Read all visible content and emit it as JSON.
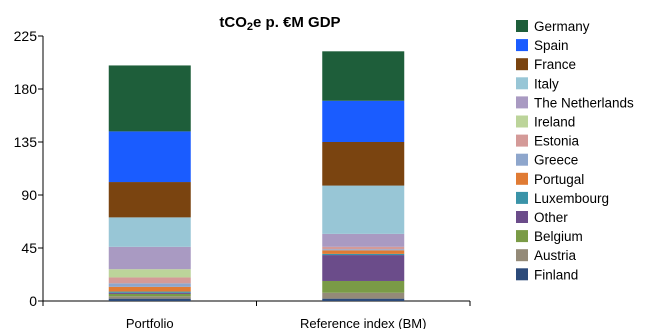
{
  "chart_data": {
    "type": "bar",
    "stacked": true,
    "title": "tCO₂e p. €M GDP",
    "categories": [
      "Portfolio",
      "Reference index (BM)"
    ],
    "ylim": [
      0,
      225
    ],
    "yticks": [
      0,
      45,
      90,
      135,
      180,
      225
    ],
    "grid": false,
    "legend_position": "right",
    "series": [
      {
        "name": "Finland",
        "color": "#2c4a7a",
        "values": [
          2,
          2
        ]
      },
      {
        "name": "Austria",
        "color": "#948a78",
        "values": [
          2,
          5
        ]
      },
      {
        "name": "Belgium",
        "color": "#7a9b46",
        "values": [
          2,
          10
        ]
      },
      {
        "name": "Other",
        "color": "#6b4c8a",
        "values": [
          1,
          22
        ]
      },
      {
        "name": "Luxembourg",
        "color": "#3a93a8",
        "values": [
          1,
          1
        ]
      },
      {
        "name": "Portugal",
        "color": "#e07b34",
        "values": [
          4,
          3
        ]
      },
      {
        "name": "Greece",
        "color": "#8ea6cc",
        "values": [
          3,
          1
        ]
      },
      {
        "name": "Estonia",
        "color": "#d49a98",
        "values": [
          5,
          2
        ]
      },
      {
        "name": "Ireland",
        "color": "#bcd49a",
        "values": [
          7,
          0
        ]
      },
      {
        "name": "The Netherlands",
        "color": "#a99ac2",
        "values": [
          19,
          11
        ]
      },
      {
        "name": "Italy",
        "color": "#98c6d6",
        "values": [
          25,
          41
        ]
      },
      {
        "name": "France",
        "color": "#7a4410",
        "values": [
          30,
          37
        ]
      },
      {
        "name": "Spain",
        "color": "#1a5cff",
        "values": [
          43,
          35
        ]
      },
      {
        "name": "Germany",
        "color": "#1e5e3a",
        "values": [
          56,
          42
        ]
      }
    ]
  }
}
